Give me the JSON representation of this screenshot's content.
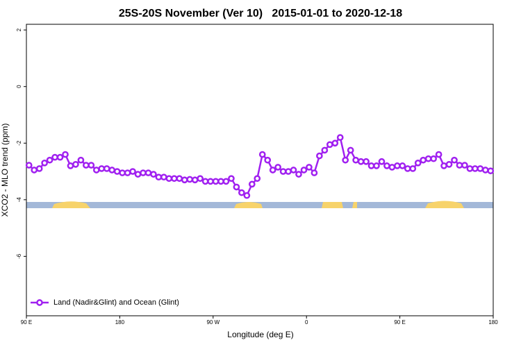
{
  "chart_data": {
    "type": "line",
    "title": "25S-20S November (Ver 10)   2015-01-01 to 2020-12-18",
    "x_label": "Longitude (deg E)",
    "y_label": "XCO2 - MLO trend (ppm)",
    "x": [
      92.5,
      97.5,
      102.5,
      107.5,
      112.5,
      117.5,
      122.5,
      127.5,
      132.5,
      137.5,
      142.5,
      147.5,
      152.5,
      157.5,
      162.5,
      167.5,
      172.5,
      177.5,
      182.5,
      187.5,
      192.5,
      197.5,
      202.5,
      207.5,
      212.5,
      217.5,
      222.5,
      227.5,
      232.5,
      237.5,
      242.5,
      247.5,
      252.5,
      257.5,
      262.5,
      267.5,
      272.5,
      277.5,
      282.5,
      287.5,
      292.5,
      297.5,
      302.5,
      307.5,
      312.5,
      317.5,
      322.5,
      327.5,
      332.5,
      337.5,
      342.5,
      347.5,
      352.5,
      357.5,
      362.5,
      367.5,
      372.5,
      377.5,
      382.5,
      387.5,
      392.5,
      397.5,
      402.5,
      407.5,
      412.5,
      417.5,
      422.5,
      427.5,
      432.5,
      437.5,
      442.5,
      447.5,
      452.5,
      457.5,
      462.5,
      467.5,
      472.5,
      477.5,
      482.5,
      487.5,
      492.5,
      497.5,
      502.5,
      507.5,
      512.5,
      517.5,
      522.5,
      527.5,
      532.5,
      537.5
    ],
    "series": [
      {
        "name": "Land (Nadir&Glint) and Ocean (Glint)",
        "color": "#a020f0",
        "values": [
          -2.78,
          -2.95,
          -2.9,
          -2.7,
          -2.6,
          -2.5,
          -2.5,
          -2.4,
          -2.8,
          -2.75,
          -2.6,
          -2.78,
          -2.78,
          -2.95,
          -2.9,
          -2.9,
          -2.95,
          -3.0,
          -3.05,
          -3.05,
          -3.0,
          -3.1,
          -3.05,
          -3.05,
          -3.1,
          -3.2,
          -3.2,
          -3.25,
          -3.25,
          -3.25,
          -3.3,
          -3.28,
          -3.3,
          -3.25,
          -3.35,
          -3.35,
          -3.35,
          -3.35,
          -3.35,
          -3.25,
          -3.55,
          -3.75,
          -3.85,
          -3.45,
          -3.25,
          -2.4,
          -2.6,
          -2.95,
          -2.85,
          -3.0,
          -3.0,
          -2.95,
          -3.1,
          -2.95,
          -2.85,
          -3.05,
          -2.45,
          -2.25,
          -2.05,
          -2.0,
          -1.8,
          -2.6,
          -2.25,
          -2.6,
          -2.65,
          -2.65,
          -2.8,
          -2.8,
          -2.65,
          -2.8,
          -2.85,
          -2.8,
          -2.8,
          -2.9,
          -2.9,
          -2.7,
          -2.6,
          -2.55,
          -2.55,
          -2.4,
          -2.8,
          -2.75,
          -2.6,
          -2.78,
          -2.78,
          -2.9,
          -2.9,
          -2.9,
          -2.95,
          -2.98
        ]
      }
    ],
    "xlim": [
      90,
      540
    ],
    "xticks": [
      {
        "value": 90,
        "label": "90 E"
      },
      180,
      {
        "value": 270,
        "label": "90 W"
      },
      {
        "value": 360,
        "label": "0"
      },
      {
        "value": 450,
        "label": "90 E"
      },
      {
        "value": 540,
        "label": "180"
      }
    ],
    "ylim": [
      -8.1,
      2.2
    ],
    "yticks": [
      2,
      0,
      -2,
      -4,
      -6
    ],
    "legend": "bottom-left"
  }
}
